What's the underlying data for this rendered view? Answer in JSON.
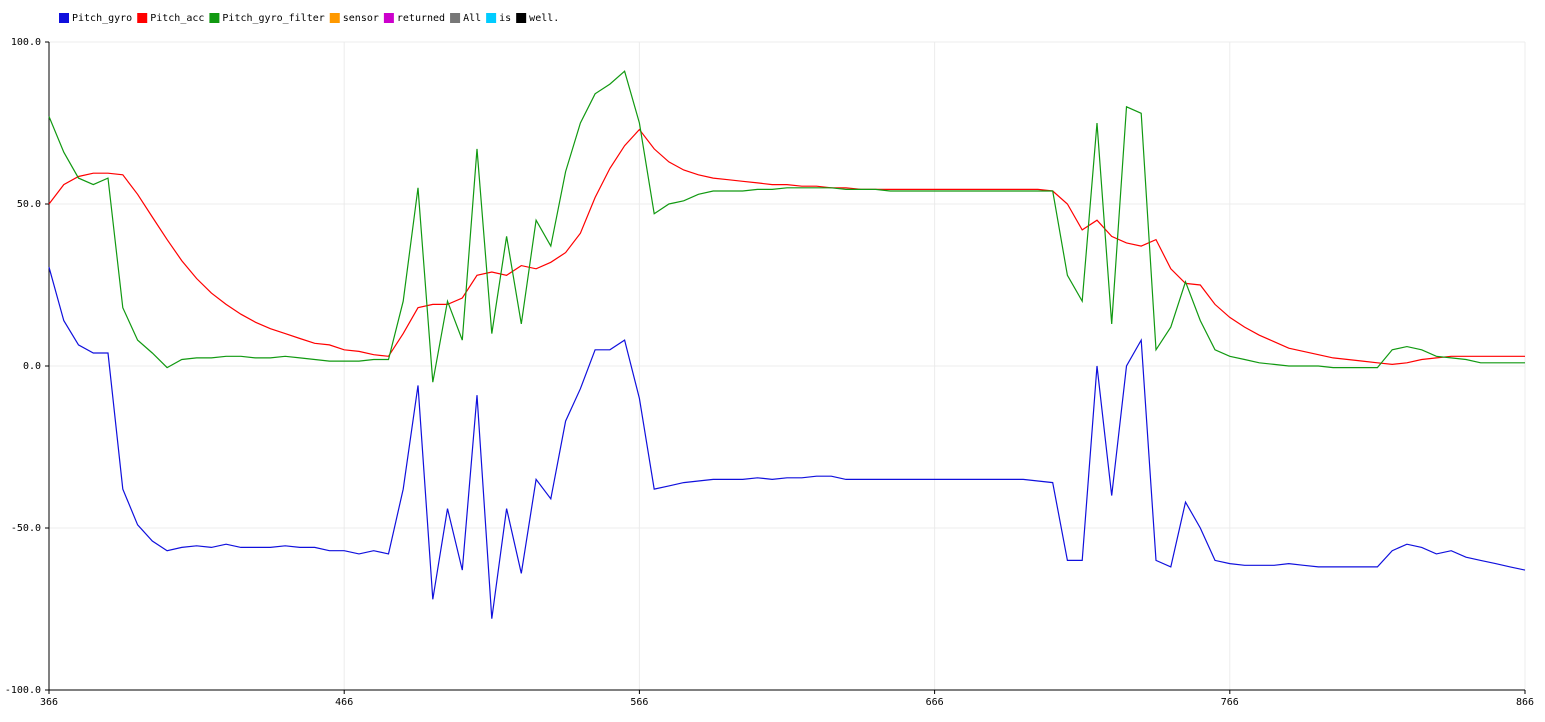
{
  "chart_data": {
    "type": "line",
    "x": [
      366,
      371,
      376,
      381,
      386,
      391,
      396,
      401,
      406,
      411,
      416,
      421,
      426,
      431,
      436,
      441,
      446,
      451,
      456,
      461,
      466,
      471,
      476,
      481,
      486,
      491,
      496,
      501,
      506,
      511,
      516,
      521,
      526,
      531,
      536,
      541,
      546,
      551,
      556,
      561,
      566,
      571,
      576,
      581,
      586,
      591,
      596,
      601,
      606,
      611,
      616,
      621,
      626,
      631,
      636,
      641,
      646,
      651,
      656,
      661,
      666,
      671,
      676,
      681,
      686,
      691,
      696,
      701,
      706,
      711,
      716,
      721,
      726,
      731,
      736,
      741,
      746,
      751,
      756,
      761,
      766,
      771,
      776,
      781,
      786,
      791,
      796,
      801,
      806,
      811,
      816,
      821,
      826,
      831,
      836,
      841,
      846,
      851,
      856,
      861,
      866
    ],
    "xlim": [
      366,
      866
    ],
    "xticks": [
      366,
      466,
      566,
      666,
      766,
      866
    ],
    "ylim": [
      -100,
      100
    ],
    "yticks": [
      {
        "value": -100,
        "label": "-100.0"
      },
      {
        "value": -50,
        "label": "-50.0"
      },
      {
        "value": 0,
        "label": "0.0"
      },
      {
        "value": 50,
        "label": "50.0"
      },
      {
        "value": 100,
        "label": "100.0"
      }
    ],
    "grid": true,
    "legend": "top-left",
    "series": [
      {
        "name": "Pitch_gyro",
        "color": "#1010dd",
        "values": [
          30.5,
          14,
          6.5,
          4,
          4,
          -38,
          -49,
          -54,
          -57,
          -56,
          -55.5,
          -56,
          -55,
          -56,
          -56,
          -56,
          -55.5,
          -56,
          -56,
          -57,
          -57,
          -58,
          -57,
          -58,
          -38,
          -6,
          -72,
          -44,
          -63,
          -9,
          -78,
          -44,
          -64,
          -35,
          -41,
          -17,
          -7,
          5,
          5,
          8,
          -10,
          -38,
          -37,
          -36,
          -35.5,
          -35,
          -35,
          -35,
          -34.5,
          -35,
          -34.5,
          -34.5,
          -34,
          -34,
          -35,
          -35,
          -35,
          -35,
          -35,
          -35,
          -35,
          -35,
          -35,
          -35,
          -35,
          -35,
          -35,
          -35.5,
          -36,
          -60,
          -60,
          0,
          -40,
          0,
          8,
          -60,
          -62,
          -42,
          -50,
          -60,
          -61,
          -61.5,
          -61.5,
          -61.5,
          -61,
          -61.5,
          -62,
          -62,
          -62,
          -62,
          -62,
          -57,
          -55,
          -56,
          -58,
          -57,
          -59,
          -60,
          -61,
          -62,
          -63
        ]
      },
      {
        "name": "Pitch_acc",
        "color": "#ff0000",
        "values": [
          50,
          56,
          58.5,
          59.5,
          59.5,
          59,
          53,
          46,
          39,
          32.5,
          27,
          22.5,
          19,
          16,
          13.5,
          11.5,
          10,
          8.5,
          7,
          6.5,
          5,
          4.5,
          3.5,
          3,
          10,
          18,
          19,
          19,
          21,
          28,
          29,
          28,
          31,
          30,
          32,
          35,
          41,
          52,
          61,
          68,
          73,
          67,
          63,
          60.5,
          59,
          58,
          57.5,
          57,
          56.5,
          56,
          56,
          55.5,
          55.5,
          55,
          55,
          54.5,
          54.5,
          54.5,
          54.5,
          54.5,
          54.5,
          54.5,
          54.5,
          54.5,
          54.5,
          54.5,
          54.5,
          54.5,
          54,
          50,
          42,
          45,
          40,
          38,
          37,
          39,
          30,
          25.5,
          25,
          19,
          15,
          12,
          9.5,
          7.5,
          5.5,
          4.5,
          3.5,
          2.5,
          2,
          1.5,
          1,
          0.5,
          1,
          2,
          2.5,
          3,
          3,
          3,
          3,
          3,
          3
        ]
      },
      {
        "name": "Pitch_gyro_filter",
        "color": "#119911",
        "values": [
          77,
          66,
          58,
          56,
          58,
          18,
          8,
          4,
          -0.5,
          2,
          2.5,
          2.5,
          3,
          3,
          2.5,
          2.5,
          3,
          2.5,
          2,
          1.5,
          1.5,
          1.5,
          2,
          2,
          20,
          55,
          -5,
          20,
          8,
          67,
          10,
          40,
          13,
          45,
          37,
          60,
          75,
          84,
          87,
          91,
          75,
          47,
          50,
          51,
          53,
          54,
          54,
          54,
          54.5,
          54.5,
          55,
          55,
          55,
          55,
          54.5,
          54.5,
          54.5,
          54,
          54,
          54,
          54,
          54,
          54,
          54,
          54,
          54,
          54,
          54,
          54,
          28,
          20,
          75,
          13,
          80,
          78,
          5,
          12,
          26,
          14,
          5,
          3,
          2,
          1,
          0.5,
          0,
          0,
          0,
          -0.5,
          -0.5,
          -0.5,
          -0.5,
          5,
          6,
          5,
          3,
          2.5,
          2,
          1,
          1,
          1,
          1
        ]
      },
      {
        "name": "sensor",
        "color": "#ff9900",
        "values": [
          null,
          null,
          null,
          null,
          null,
          null,
          null,
          null,
          null,
          null,
          null,
          null,
          null,
          null,
          null,
          null,
          null,
          null,
          null,
          null,
          null,
          null,
          null,
          null,
          null,
          null,
          null,
          null,
          null,
          null,
          null,
          null,
          null,
          null,
          null,
          null,
          null,
          null,
          null,
          null,
          null,
          null,
          null,
          null,
          null,
          null,
          null,
          null,
          null,
          null,
          null,
          null,
          null,
          null,
          null,
          null,
          null,
          null,
          null,
          null,
          null,
          null,
          null,
          null,
          null,
          null,
          null,
          null,
          null,
          null,
          null,
          null,
          null,
          null,
          null,
          null,
          null,
          null,
          null,
          null,
          null,
          null,
          null,
          null,
          null,
          null,
          null,
          null,
          null,
          null,
          null,
          null,
          null,
          null,
          null,
          null,
          null,
          null,
          null,
          null,
          null
        ]
      },
      {
        "name": "returned",
        "color": "#cc00cc",
        "values": [
          null,
          null,
          null,
          null,
          null,
          null,
          null,
          null,
          null,
          null,
          null,
          null,
          null,
          null,
          null,
          null,
          null,
          null,
          null,
          null,
          null,
          null,
          null,
          null,
          null,
          null,
          null,
          null,
          null,
          null,
          null,
          null,
          null,
          null,
          null,
          null,
          null,
          null,
          null,
          null,
          null,
          null,
          null,
          null,
          null,
          null,
          null,
          null,
          null,
          null,
          null,
          null,
          null,
          null,
          null,
          null,
          null,
          null,
          null,
          null,
          null,
          null,
          null,
          null,
          null,
          null,
          null,
          null,
          null,
          null,
          null,
          null,
          null,
          null,
          null,
          null,
          null,
          null,
          null,
          null,
          null,
          null,
          null,
          null,
          null,
          null,
          null,
          null,
          null,
          null,
          null,
          null,
          null,
          null,
          null,
          null,
          null,
          null,
          null,
          null,
          null
        ]
      },
      {
        "name": "All",
        "color": "#777777",
        "values": [
          null,
          null,
          null,
          null,
          null,
          null,
          null,
          null,
          null,
          null,
          null,
          null,
          null,
          null,
          null,
          null,
          null,
          null,
          null,
          null,
          null,
          null,
          null,
          null,
          null,
          null,
          null,
          null,
          null,
          null,
          null,
          null,
          null,
          null,
          null,
          null,
          null,
          null,
          null,
          null,
          null,
          null,
          null,
          null,
          null,
          null,
          null,
          null,
          null,
          null,
          null,
          null,
          null,
          null,
          null,
          null,
          null,
          null,
          null,
          null,
          null,
          null,
          null,
          null,
          null,
          null,
          null,
          null,
          null,
          null,
          null,
          null,
          null,
          null,
          null,
          null,
          null,
          null,
          null,
          null,
          null,
          null,
          null,
          null,
          null,
          null,
          null,
          null,
          null,
          null,
          null,
          null,
          null,
          null,
          null,
          null,
          null,
          null,
          null,
          null,
          null
        ]
      },
      {
        "name": "is",
        "color": "#00ccff",
        "values": [
          null,
          null,
          null,
          null,
          null,
          null,
          null,
          null,
          null,
          null,
          null,
          null,
          null,
          null,
          null,
          null,
          null,
          null,
          null,
          null,
          null,
          null,
          null,
          null,
          null,
          null,
          null,
          null,
          null,
          null,
          null,
          null,
          null,
          null,
          null,
          null,
          null,
          null,
          null,
          null,
          null,
          null,
          null,
          null,
          null,
          null,
          null,
          null,
          null,
          null,
          null,
          null,
          null,
          null,
          null,
          null,
          null,
          null,
          null,
          null,
          null,
          null,
          null,
          null,
          null,
          null,
          null,
          null,
          null,
          null,
          null,
          null,
          null,
          null,
          null,
          null,
          null,
          null,
          null,
          null,
          null,
          null,
          null,
          null,
          null,
          null,
          null,
          null,
          null,
          null,
          null,
          null,
          null,
          null,
          null,
          null,
          null,
          null,
          null,
          null,
          null
        ]
      },
      {
        "name": "well.",
        "color": "#000000",
        "values": [
          null,
          null,
          null,
          null,
          null,
          null,
          null,
          null,
          null,
          null,
          null,
          null,
          null,
          null,
          null,
          null,
          null,
          null,
          null,
          null,
          null,
          null,
          null,
          null,
          null,
          null,
          null,
          null,
          null,
          null,
          null,
          null,
          null,
          null,
          null,
          null,
          null,
          null,
          null,
          null,
          null,
          null,
          null,
          null,
          null,
          null,
          null,
          null,
          null,
          null,
          null,
          null,
          null,
          null,
          null,
          null,
          null,
          null,
          null,
          null,
          null,
          null,
          null,
          null,
          null,
          null,
          null,
          null,
          null,
          null,
          null,
          null,
          null,
          null,
          null,
          null,
          null,
          null,
          null,
          null,
          null,
          null,
          null,
          null,
          null,
          null,
          null,
          null,
          null,
          null,
          null,
          null,
          null,
          null,
          null,
          null,
          null,
          null,
          null,
          null,
          null
        ]
      }
    ]
  }
}
